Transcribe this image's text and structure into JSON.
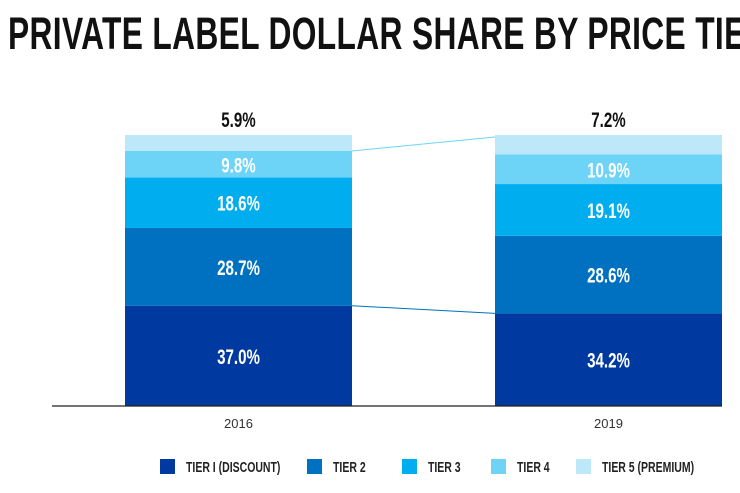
{
  "chart_data": {
    "type": "bar",
    "stacked": true,
    "title": "PRIVATE LABEL DOLLAR SHARE BY PRICE TIER",
    "xlabel": "",
    "ylabel": "",
    "ylim": [
      0,
      100
    ],
    "grid": false,
    "legend_position": "bottom",
    "categories": [
      "2016",
      "2019"
    ],
    "series": [
      {
        "name": "TIER I (DISCOUNT)",
        "color": "#0039a0",
        "values": [
          37.0,
          34.2
        ],
        "labels": [
          "37.0%",
          "34.2%"
        ]
      },
      {
        "name": "TIER 2",
        "color": "#0070c0",
        "values": [
          28.7,
          28.6
        ],
        "labels": [
          "28.7%",
          "28.6%"
        ]
      },
      {
        "name": "TIER 3",
        "color": "#00aeef",
        "values": [
          18.6,
          19.1
        ],
        "labels": [
          "18.6%",
          "19.1%"
        ]
      },
      {
        "name": "TIER 4",
        "color": "#6dd3f7",
        "values": [
          9.8,
          10.9
        ],
        "labels": [
          "9.8%",
          "10.9%"
        ]
      },
      {
        "name": "TIER 5 (PREMIUM)",
        "color": "#bde8f9",
        "values": [
          5.9,
          7.2
        ],
        "labels": [
          "5.9%",
          "7.2%"
        ]
      }
    ]
  }
}
